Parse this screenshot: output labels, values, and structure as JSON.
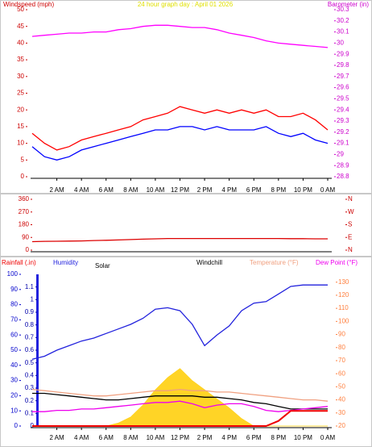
{
  "chart_data": [
    {
      "type": "line",
      "title": "24 hour graph day : April 01 2026",
      "ylabel": "Windspeed (mph)",
      "y2label": "Barometer (in)",
      "x": [
        0,
        1,
        2,
        3,
        4,
        5,
        6,
        7,
        8,
        9,
        10,
        11,
        12,
        13,
        14,
        15,
        16,
        17,
        18,
        19,
        20,
        21,
        22,
        23,
        24
      ],
      "xlim": [
        0,
        24
      ],
      "xticks": [
        {
          "value": 2,
          "label": "2 AM"
        },
        {
          "value": 4,
          "label": "4 AM"
        },
        {
          "value": 6,
          "label": "6 AM"
        },
        {
          "value": 8,
          "label": "8 AM"
        },
        {
          "value": 10,
          "label": "10 AM"
        },
        {
          "value": 12,
          "label": "12 PM"
        },
        {
          "value": 14,
          "label": "2 PM"
        },
        {
          "value": 16,
          "label": "4 PM"
        },
        {
          "value": 18,
          "label": "6 PM"
        },
        {
          "value": 20,
          "label": "8 PM"
        },
        {
          "value": 22,
          "label": "10 PM"
        },
        {
          "value": 24,
          "label": "0 AM"
        }
      ],
      "ylim": [
        0,
        50
      ],
      "yticks": [
        0,
        5,
        10,
        15,
        20,
        25,
        30,
        35,
        40,
        45,
        50
      ],
      "ycolor": "#cc0000",
      "y2lim": [
        28.8,
        30.3
      ],
      "y2ticks": [
        28.8,
        28.9,
        29,
        29.1,
        29.2,
        29.3,
        29.4,
        29.5,
        29.6,
        29.7,
        29.8,
        29.9,
        30,
        30.1,
        30.2,
        30.3
      ],
      "y2color": "#cc00cc",
      "series": [
        {
          "color": "#ff0000",
          "values": [
            13,
            10,
            8,
            9,
            11,
            12,
            13,
            14,
            15,
            17,
            18,
            19,
            21,
            20,
            19,
            20,
            19,
            20,
            19,
            20,
            18,
            18,
            19,
            17,
            14
          ]
        },
        {
          "color": "#0000ff",
          "values": [
            9,
            6,
            5,
            6,
            8,
            9,
            10,
            11,
            12,
            13,
            14,
            14,
            15,
            15,
            14,
            15,
            14,
            14,
            14,
            15,
            13,
            12,
            13,
            11,
            10
          ]
        },
        {
          "color": "#ff00ff",
          "axis": "y2",
          "values": [
            30.06,
            30.07,
            30.08,
            30.09,
            30.09,
            30.1,
            30.1,
            30.12,
            30.13,
            30.15,
            30.16,
            30.16,
            30.15,
            30.14,
            30.14,
            30.12,
            30.09,
            30.07,
            30.05,
            30.02,
            30.0,
            29.99,
            29.98,
            29.97,
            29.96
          ]
        }
      ]
    },
    {
      "type": "line",
      "x": [
        0,
        1,
        2,
        3,
        4,
        5,
        6,
        7,
        8,
        9,
        10,
        11,
        12,
        13,
        14,
        15,
        16,
        17,
        18,
        19,
        20,
        21,
        22,
        23,
        24
      ],
      "xlim": [
        0,
        24
      ],
      "ylim": [
        0,
        360
      ],
      "yticks": [
        0,
        90,
        180,
        270,
        360
      ],
      "ycolor": "#cc0000",
      "y2lim": [
        0,
        360
      ],
      "y2ticks": [
        {
          "value": 0,
          "label": "N"
        },
        {
          "value": 90,
          "label": "E"
        },
        {
          "value": 180,
          "label": "S"
        },
        {
          "value": 270,
          "label": "W"
        },
        {
          "value": 360,
          "label": "N"
        }
      ],
      "y2color": "#cc0000",
      "series": [
        {
          "color": "#dd0000",
          "values": [
            60,
            62,
            63,
            64,
            65,
            68,
            70,
            72,
            75,
            78,
            80,
            82,
            82,
            82,
            82,
            82,
            82,
            82,
            82,
            82,
            82,
            81,
            81,
            80,
            80
          ]
        }
      ]
    },
    {
      "type": "line",
      "x": [
        0,
        1,
        2,
        3,
        4,
        5,
        6,
        7,
        8,
        9,
        10,
        11,
        12,
        13,
        14,
        15,
        16,
        17,
        18,
        19,
        20,
        21,
        22,
        23,
        24
      ],
      "xlim": [
        0,
        24
      ],
      "xticks": [
        {
          "value": 2,
          "label": "2 AM"
        },
        {
          "value": 4,
          "label": "4 AM"
        },
        {
          "value": 6,
          "label": "6 AM"
        },
        {
          "value": 8,
          "label": "8 AM"
        },
        {
          "value": 10,
          "label": "10 AM"
        },
        {
          "value": 12,
          "label": "12 PM"
        },
        {
          "value": 14,
          "label": "2 PM"
        },
        {
          "value": 16,
          "label": "4 PM"
        },
        {
          "value": 18,
          "label": "6 PM"
        },
        {
          "value": 20,
          "label": "8 PM"
        },
        {
          "value": 22,
          "label": "10 PM"
        },
        {
          "value": 24,
          "label": "0 AM"
        }
      ],
      "ylim": [
        0,
        100
      ],
      "yticks": [
        0,
        10,
        20,
        30,
        40,
        50,
        60,
        70,
        80,
        90,
        100
      ],
      "ycolor": "#0000cc",
      "y3lim": [
        0,
        1.2
      ],
      "y3ticks": [
        0,
        0.1,
        0.2,
        0.3,
        0.4,
        0.5,
        0.6,
        0.7,
        0.8,
        0.9,
        1,
        1.1
      ],
      "y3color": "#0000aa",
      "y2lim": [
        20,
        136
      ],
      "y2ticks": [
        20,
        30,
        40,
        50,
        60,
        70,
        80,
        90,
        100,
        110,
        120,
        130
      ],
      "y2color": "#ff8040",
      "series": [
        {
          "name": "Solar",
          "color": "#ffcc00",
          "type": "area",
          "values": [
            0,
            0,
            0,
            0,
            0,
            0,
            0,
            2,
            6,
            14,
            24,
            32,
            38,
            30,
            24,
            18,
            12,
            5,
            0,
            0,
            0,
            0,
            0,
            0,
            0
          ]
        },
        {
          "name": "Humidity",
          "color": "#2222dd",
          "values": [
            44,
            46,
            50,
            53,
            56,
            58,
            61,
            64,
            67,
            71,
            77,
            78,
            76,
            67,
            53,
            60,
            66,
            76,
            81,
            82,
            87,
            92,
            93,
            93,
            93
          ]
        },
        {
          "name": "Temperature (°F)",
          "color": "#f0a080",
          "axis": "y2",
          "values": [
            48,
            47,
            46,
            45,
            44,
            43,
            43,
            44,
            45,
            46,
            47,
            47,
            48,
            47,
            47,
            46,
            46,
            45,
            44,
            43,
            42,
            41,
            40,
            40,
            39
          ]
        },
        {
          "name": "Windchill",
          "color": "#000000",
          "axis": "y2",
          "values": [
            45,
            45,
            44,
            43,
            42,
            41,
            40,
            40,
            41,
            42,
            43,
            43,
            43,
            43,
            42,
            42,
            41,
            40,
            38,
            37,
            35,
            33,
            33,
            33,
            33
          ]
        },
        {
          "name": "Dew Point (°F)",
          "color": "#ee00ee",
          "axis": "y2",
          "values": [
            31,
            31,
            32,
            32,
            33,
            33,
            34,
            35,
            36,
            37,
            38,
            38,
            39,
            37,
            34,
            36,
            37,
            37,
            35,
            32,
            31,
            32,
            33,
            34,
            35
          ]
        },
        {
          "name": "Rainfall (.in)",
          "color": "#ee0000",
          "axis": "y3",
          "values": [
            0,
            0,
            0,
            0,
            0,
            0,
            0,
            0,
            0,
            0,
            0,
            0,
            0,
            0,
            0,
            0,
            0,
            0,
            0,
            0,
            0.04,
            0.12,
            0.12,
            0.12,
            0.12
          ]
        }
      ]
    }
  ]
}
